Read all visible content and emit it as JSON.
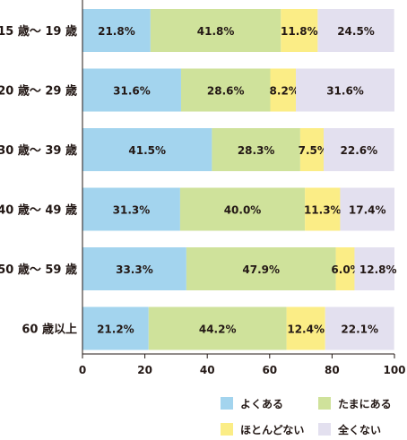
{
  "chart_data": {
    "type": "bar",
    "orientation": "horizontal",
    "stacked": true,
    "categories": [
      "15 歳〜 19 歳",
      "20 歳〜 29 歳",
      "30 歳〜 39 歳",
      "40 歳〜 49 歳",
      "50 歳〜 59 歳",
      "60 歳以上"
    ],
    "series": [
      {
        "name": "よくある",
        "color": "#a3d4ee",
        "values": [
          21.8,
          31.6,
          41.5,
          31.3,
          33.3,
          21.2
        ]
      },
      {
        "name": "たまにある",
        "color": "#cfe29b",
        "values": [
          41.8,
          28.6,
          28.3,
          40.0,
          47.9,
          44.2
        ]
      },
      {
        "name": "ほとんどない",
        "color": "#fbed86",
        "values": [
          11.8,
          8.2,
          7.5,
          11.3,
          6.0,
          12.4
        ]
      },
      {
        "name": "全くない",
        "color": "#e3e0ef",
        "values": [
          24.5,
          31.6,
          22.6,
          17.4,
          12.8,
          22.1
        ]
      }
    ],
    "xlim": [
      0,
      100
    ],
    "xticks": [
      0,
      20,
      40,
      60,
      80,
      100
    ],
    "grid": false,
    "legend": "bottom"
  }
}
